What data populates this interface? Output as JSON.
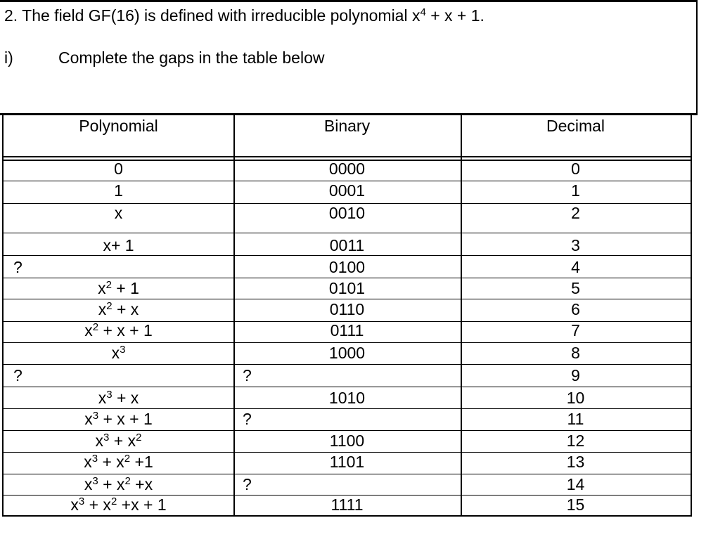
{
  "question": {
    "title_pre": "2.  The field GF(16) is defined with irreducible polynomial x",
    "title_exp": "4",
    "title_post": " + x + 1.",
    "part_label": "i)",
    "part_text": "Complete the gaps in the table below"
  },
  "table": {
    "headers": [
      "Polynomial",
      "Binary",
      "Decimal"
    ],
    "rows": [
      {
        "poly": [
          [
            "0",
            ""
          ]
        ],
        "poly_q": false,
        "binary": "0000",
        "binary_q": false,
        "decimal": "0"
      },
      {
        "poly": [
          [
            "1",
            ""
          ]
        ],
        "poly_q": false,
        "binary": "0001",
        "binary_q": false,
        "decimal": "1"
      },
      {
        "poly": [
          [
            "x",
            ""
          ]
        ],
        "poly_q": false,
        "binary": "0010",
        "binary_q": false,
        "decimal": "2"
      },
      {
        "poly": [
          [
            "x+ 1",
            ""
          ]
        ],
        "poly_q": false,
        "binary": "0011",
        "binary_q": false,
        "decimal": "3"
      },
      {
        "poly": [
          [
            "?",
            ""
          ]
        ],
        "poly_q": true,
        "binary": "0100",
        "binary_q": false,
        "decimal": "4"
      },
      {
        "poly": [
          [
            "x",
            "2"
          ],
          [
            " + 1",
            ""
          ]
        ],
        "poly_q": false,
        "binary": "0101",
        "binary_q": false,
        "decimal": "5"
      },
      {
        "poly": [
          [
            "x",
            "2"
          ],
          [
            " + x",
            ""
          ]
        ],
        "poly_q": false,
        "binary": "0110",
        "binary_q": false,
        "decimal": "6"
      },
      {
        "poly": [
          [
            "x",
            "2"
          ],
          [
            " + x + 1",
            ""
          ]
        ],
        "poly_q": false,
        "binary": "0111",
        "binary_q": false,
        "decimal": "7"
      },
      {
        "poly": [
          [
            "x",
            "3"
          ]
        ],
        "poly_q": false,
        "binary": "1000",
        "binary_q": false,
        "decimal": "8"
      },
      {
        "poly": [
          [
            "?",
            ""
          ]
        ],
        "poly_q": true,
        "binary": "?",
        "binary_q": true,
        "decimal": "9"
      },
      {
        "poly": [
          [
            "x",
            "3"
          ],
          [
            " + x",
            ""
          ]
        ],
        "poly_q": false,
        "binary": "1010",
        "binary_q": false,
        "decimal": "10"
      },
      {
        "poly": [
          [
            "x",
            "3"
          ],
          [
            " + x + 1",
            ""
          ]
        ],
        "poly_q": false,
        "binary": "?",
        "binary_q": true,
        "decimal": "11"
      },
      {
        "poly": [
          [
            "x",
            "3"
          ],
          [
            " + x",
            ""
          ],
          [
            "",
            "2"
          ]
        ],
        "poly_q": false,
        "binary": "1100",
        "binary_q": false,
        "decimal": "12"
      },
      {
        "poly": [
          [
            "x",
            "3"
          ],
          [
            " + x",
            "2"
          ],
          [
            " +1",
            ""
          ]
        ],
        "poly_q": false,
        "binary": "1101",
        "binary_q": false,
        "decimal": "13"
      },
      {
        "poly": [
          [
            "x",
            "3"
          ],
          [
            " + x",
            "2"
          ],
          [
            " +x",
            ""
          ]
        ],
        "poly_q": false,
        "binary": "?",
        "binary_q": true,
        "decimal": "14"
      },
      {
        "poly": [
          [
            "x",
            "3"
          ],
          [
            " + x",
            "2"
          ],
          [
            " +x + 1",
            ""
          ]
        ],
        "poly_q": false,
        "binary": "1111",
        "binary_q": false,
        "decimal": "15"
      }
    ]
  }
}
